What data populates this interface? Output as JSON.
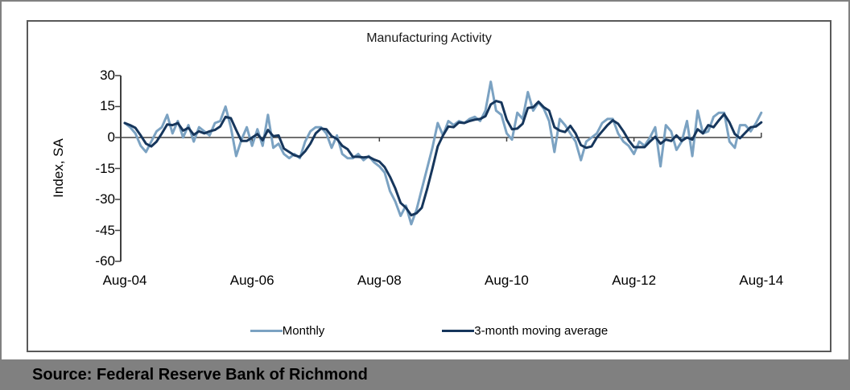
{
  "chart_data": {
    "type": "line",
    "title": "Manufacturing Activity",
    "ylabel": "Index, SA",
    "ylim": [
      -60,
      30
    ],
    "y_ticks": [
      30,
      15,
      0,
      -15,
      -30,
      -45,
      -60
    ],
    "x_tick_labels": [
      "Aug-04",
      "Aug-06",
      "Aug-08",
      "Aug-10",
      "Aug-12",
      "Aug-14"
    ],
    "x_start": "Aug-04",
    "x_end": "Aug-14",
    "x_frequency": "monthly",
    "grid": false,
    "legend_position": "bottom-center",
    "series": [
      {
        "name": "Monthly",
        "color": "#7BA2C2",
        "values": [
          7,
          5,
          2,
          -4,
          -7,
          -2,
          3,
          5,
          11,
          2,
          8,
          0,
          6,
          -2,
          5,
          3,
          1,
          7,
          8,
          15,
          5,
          -9,
          -1,
          5,
          -4,
          4,
          -4,
          11,
          -5,
          -3,
          -8,
          -10,
          -8,
          -10,
          -2,
          3,
          5,
          5,
          2,
          -5,
          1,
          -8,
          -10,
          -10,
          -8,
          -11,
          -9,
          -12,
          -14,
          -17,
          -26,
          -31,
          -38,
          -33,
          -42,
          -35,
          -25,
          -15,
          -5,
          7,
          1,
          8,
          6,
          8,
          7,
          9,
          10,
          8,
          13,
          27,
          13,
          11,
          2,
          -1,
          12,
          9,
          22,
          13,
          17,
          14,
          8,
          -7,
          9,
          6,
          2,
          -2,
          -11,
          -2,
          0,
          2,
          7,
          9,
          9,
          2,
          -2,
          -4,
          -8,
          -2,
          -4,
          0,
          5,
          -14,
          6,
          3,
          -6,
          -2,
          8,
          -9,
          13,
          2,
          3,
          10,
          12,
          12,
          -2,
          -5,
          6,
          6,
          3,
          7,
          12
        ]
      },
      {
        "name": "3-month moving average",
        "color": "#16365C",
        "derived_from": "Monthly",
        "derivation": "trailing 3-month moving average of the Monthly series"
      }
    ]
  },
  "source": {
    "text": "Source: Federal Reserve Bank of Richmond"
  },
  "colors": {
    "monthly_line": "#7BA2C2",
    "moving_average_line": "#16365C",
    "axis": "#404040",
    "chart_frame_border": "#595959",
    "outer_border": "#808080",
    "source_bar_background": "#808080",
    "text": "#000000"
  }
}
